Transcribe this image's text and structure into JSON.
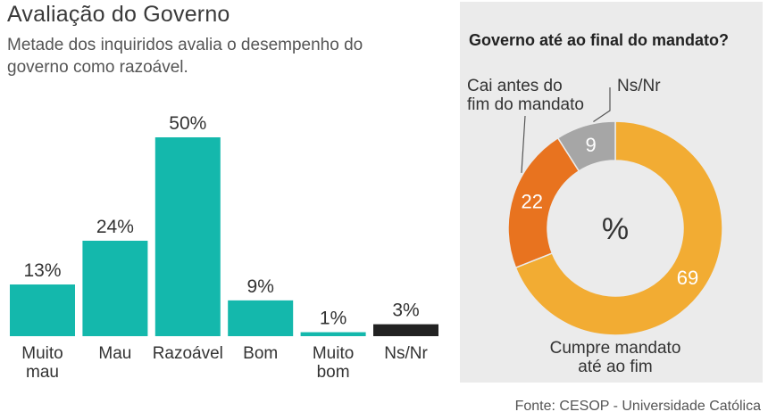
{
  "header": {
    "title": "Avaliação do Governo",
    "subtitle": "Metade dos inquiridos avalia o desempenho do governo como razoável."
  },
  "chart_data": [
    {
      "type": "bar",
      "title": "Avaliação do Governo",
      "categories": [
        [
          "Muito",
          "mau"
        ],
        [
          "Mau"
        ],
        [
          "Razoável"
        ],
        [
          "Bom"
        ],
        [
          "Muito",
          "bom"
        ],
        [
          "Ns/Nr"
        ]
      ],
      "values": [
        13,
        24,
        50,
        9,
        1,
        3
      ],
      "value_labels": [
        "13%",
        "24%",
        "50%",
        "9%",
        "1%",
        "3%"
      ],
      "colors": [
        "#14b8ac",
        "#14b8ac",
        "#14b8ac",
        "#14b8ac",
        "#14b8ac",
        "#222222"
      ],
      "ylim": [
        0,
        50
      ],
      "xlabel": "",
      "ylabel": ""
    },
    {
      "type": "pie",
      "title": "Governo até ao final do mandato?",
      "center_label": "%",
      "slices": [
        {
          "label": "Cumpre mandato até ao fim",
          "label_lines": [
            "Cumpre mandato",
            "até ao fim"
          ],
          "value": 69,
          "color": "#f2ac33"
        },
        {
          "label": "Cai antes do fim do mandato",
          "label_lines": [
            "Cai antes do",
            "fim do mandato"
          ],
          "value": 22,
          "color": "#e8731f"
        },
        {
          "label": "Ns/Nr",
          "label_lines": [
            "Ns/Nr"
          ],
          "value": 9,
          "color": "#a6a6a6"
        }
      ]
    }
  ],
  "footer": {
    "source": "Fonte: CESOP - Universidade Católica"
  }
}
